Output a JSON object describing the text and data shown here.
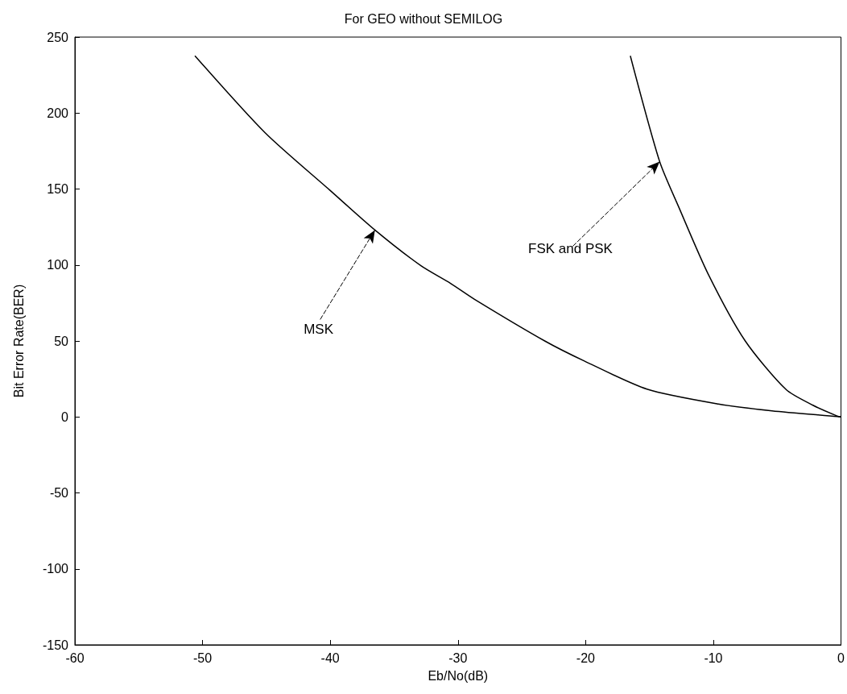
{
  "chart_data": {
    "type": "line",
    "title": "For GEO without SEMILOG",
    "xlabel": "Eb/No(dB)",
    "ylabel": "Bit Error Rate(BER)",
    "xlim": [
      -60,
      0
    ],
    "xticks": [
      -60,
      -50,
      -40,
      -30,
      -20,
      -10,
      0
    ],
    "ylim": [
      -150,
      250
    ],
    "yticks": [
      -150,
      -100,
      -50,
      0,
      50,
      100,
      150,
      200,
      250
    ],
    "marker": "none",
    "line_style": "solid",
    "series": [
      {
        "color": "#000000",
        "x": [
          -50.6,
          -45.1,
          -40.0,
          -36.5,
          -32.9,
          -30.6,
          -28.7,
          -23.2,
          -20.1,
          -15.2,
          -9.6,
          -5.4,
          -0.3,
          0
        ],
        "values": [
          237.7,
          187,
          149,
          123,
          99.5,
          88,
          77.4,
          50,
          36.8,
          18.3,
          8.5,
          4,
          0.3,
          0
        ]
      },
      {
        "color": "#000000",
        "x": [
          -16.5,
          -14.2,
          -12.7,
          -10.4,
          -7.5,
          -4.3,
          -2.2,
          -0.3,
          0
        ],
        "values": [
          237.7,
          168,
          138,
          94,
          50,
          18,
          7.7,
          0.6,
          0
        ]
      }
    ],
    "annotations": [
      {
        "text": "MSK",
        "x": -36.5,
        "y": 123
      },
      {
        "text": "FSK and PSK",
        "x": -14.2,
        "y": 168
      }
    ]
  }
}
